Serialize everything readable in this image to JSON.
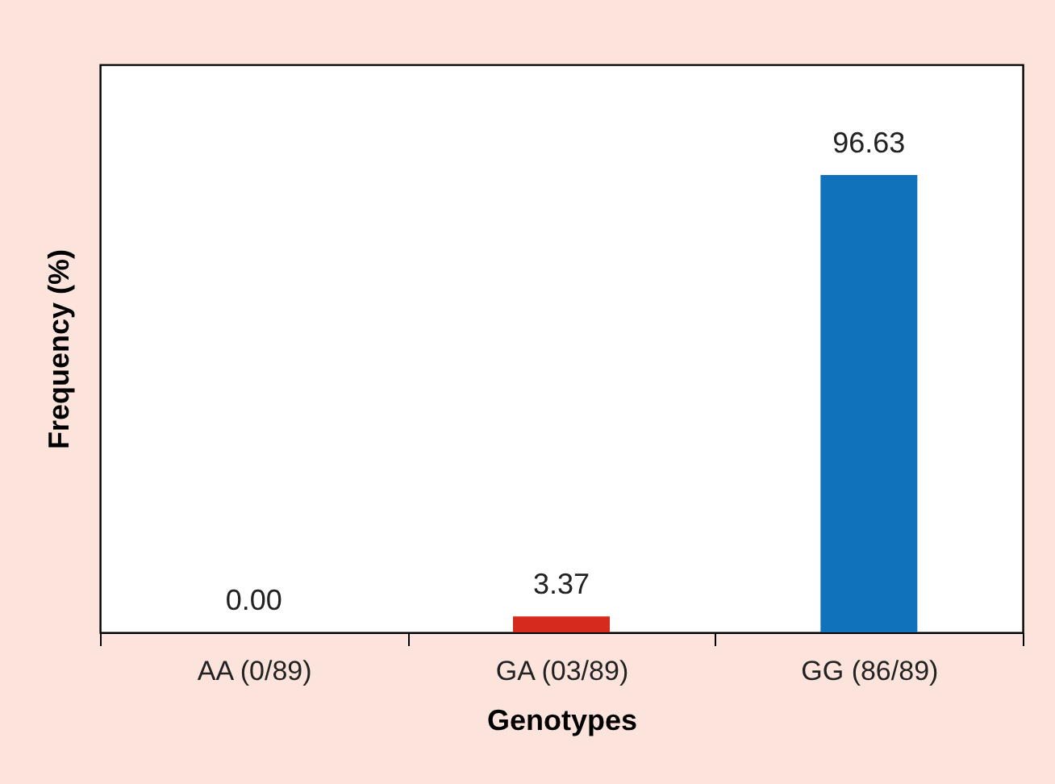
{
  "chart_data": {
    "type": "bar",
    "xlabel": "Genotypes",
    "ylabel": "Frequency (%)",
    "categories": [
      "AA (0/89)",
      "GA (03/89)",
      "GG (86/89)"
    ],
    "values": [
      0.0,
      3.37,
      96.63
    ],
    "value_labels": [
      "0.00",
      "3.37",
      "96.63"
    ],
    "colors": [
      "#d62a1e",
      "#d62a1e",
      "#1072bb"
    ],
    "ylim": [
      0,
      120
    ],
    "tick_labels": "x",
    "grid": false
  }
}
